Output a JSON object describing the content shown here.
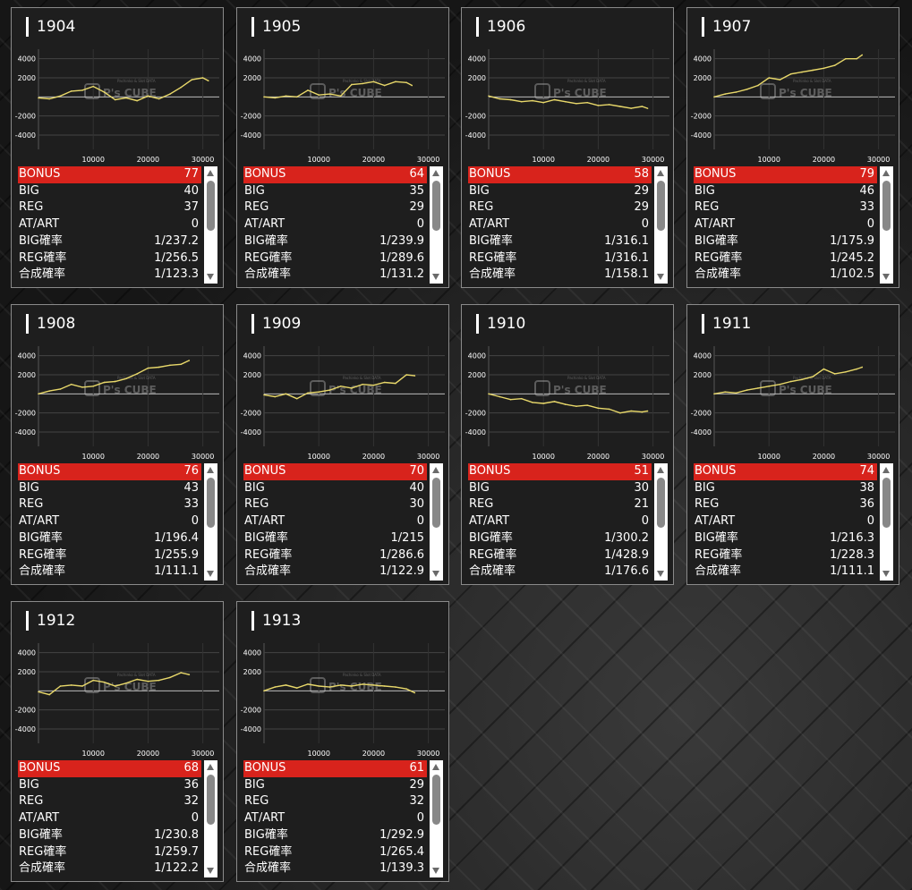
{
  "labels": {
    "bonus": "BONUS",
    "big": "BIG",
    "reg": "REG",
    "at_art": "AT/ART",
    "big_rate": "BIG確率",
    "reg_rate": "REG確率",
    "combined_rate": "合成確率"
  },
  "watermark": {
    "brand": "P's CUBE",
    "tagline": "Pachinko & Slot DATA"
  },
  "colors": {
    "line": "#e8d86a",
    "highlight": "#d8231c",
    "grid": "#444444"
  },
  "machines": [
    {
      "id": "1904",
      "bonus": "77",
      "big": "40",
      "reg": "37",
      "at_art": "0",
      "big_rate": "1/237.2",
      "reg_rate": "1/256.5",
      "combined_rate": "1/123.3"
    },
    {
      "id": "1905",
      "bonus": "64",
      "big": "35",
      "reg": "29",
      "at_art": "0",
      "big_rate": "1/239.9",
      "reg_rate": "1/289.6",
      "combined_rate": "1/131.2"
    },
    {
      "id": "1906",
      "bonus": "58",
      "big": "29",
      "reg": "29",
      "at_art": "0",
      "big_rate": "1/316.1",
      "reg_rate": "1/316.1",
      "combined_rate": "1/158.1"
    },
    {
      "id": "1907",
      "bonus": "79",
      "big": "46",
      "reg": "33",
      "at_art": "0",
      "big_rate": "1/175.9",
      "reg_rate": "1/245.2",
      "combined_rate": "1/102.5"
    },
    {
      "id": "1908",
      "bonus": "76",
      "big": "43",
      "reg": "33",
      "at_art": "0",
      "big_rate": "1/196.4",
      "reg_rate": "1/255.9",
      "combined_rate": "1/111.1"
    },
    {
      "id": "1909",
      "bonus": "70",
      "big": "40",
      "reg": "30",
      "at_art": "0",
      "big_rate": "1/215",
      "reg_rate": "1/286.6",
      "combined_rate": "1/122.9"
    },
    {
      "id": "1910",
      "bonus": "51",
      "big": "30",
      "reg": "21",
      "at_art": "0",
      "big_rate": "1/300.2",
      "reg_rate": "1/428.9",
      "combined_rate": "1/176.6"
    },
    {
      "id": "1911",
      "bonus": "74",
      "big": "38",
      "reg": "36",
      "at_art": "0",
      "big_rate": "1/216.3",
      "reg_rate": "1/228.3",
      "combined_rate": "1/111.1"
    },
    {
      "id": "1912",
      "bonus": "68",
      "big": "36",
      "reg": "32",
      "at_art": "0",
      "big_rate": "1/230.8",
      "reg_rate": "1/259.7",
      "combined_rate": "1/122.2"
    },
    {
      "id": "1913",
      "bonus": "61",
      "big": "29",
      "reg": "32",
      "at_art": "0",
      "big_rate": "1/292.9",
      "reg_rate": "1/265.4",
      "combined_rate": "1/139.3"
    }
  ],
  "chart_data": [
    {
      "type": "line",
      "title": "1904",
      "xlim": [
        0,
        33000
      ],
      "ylim": [
        -5500,
        5000
      ],
      "x_ticks": [
        "10000",
        "20000",
        "30000"
      ],
      "y_ticks": [
        "4000",
        "2000",
        "-2000",
        "-4000"
      ],
      "x": [
        0,
        2000,
        4000,
        6000,
        8000,
        10000,
        12000,
        14000,
        16000,
        18000,
        20000,
        22000,
        24000,
        26000,
        28000,
        30000,
        31000
      ],
      "y": [
        -100,
        -200,
        100,
        600,
        700,
        1100,
        500,
        -300,
        -100,
        -400,
        100,
        -200,
        300,
        1000,
        1800,
        2000,
        1700
      ]
    },
    {
      "type": "line",
      "title": "1905",
      "xlim": [
        0,
        33000
      ],
      "ylim": [
        -5500,
        5000
      ],
      "x_ticks": [
        "10000",
        "20000",
        "30000"
      ],
      "y_ticks": [
        "4000",
        "2000",
        "-2000",
        "-4000"
      ],
      "x": [
        0,
        2000,
        4000,
        6000,
        8000,
        10000,
        12000,
        14000,
        16000,
        18000,
        20000,
        22000,
        24000,
        26000,
        27000
      ],
      "y": [
        0,
        -100,
        100,
        0,
        700,
        200,
        300,
        100,
        1300,
        1400,
        1600,
        1200,
        1600,
        1500,
        1200
      ]
    },
    {
      "type": "line",
      "title": "1906",
      "xlim": [
        0,
        33000
      ],
      "ylim": [
        -5500,
        5000
      ],
      "x_ticks": [
        "10000",
        "20000",
        "30000"
      ],
      "y_ticks": [
        "4000",
        "2000",
        "-2000",
        "-4000"
      ],
      "x": [
        0,
        2000,
        4000,
        6000,
        8000,
        10000,
        12000,
        14000,
        16000,
        18000,
        20000,
        22000,
        24000,
        26000,
        28000,
        29000
      ],
      "y": [
        100,
        -200,
        -300,
        -500,
        -400,
        -600,
        -300,
        -500,
        -700,
        -600,
        -900,
        -800,
        -1000,
        -1200,
        -1000,
        -1200
      ]
    },
    {
      "type": "line",
      "title": "1907",
      "xlim": [
        0,
        33000
      ],
      "ylim": [
        -5500,
        5000
      ],
      "x_ticks": [
        "10000",
        "20000",
        "30000"
      ],
      "y_ticks": [
        "4000",
        "2000",
        "-2000",
        "-4000"
      ],
      "x": [
        0,
        2000,
        4000,
        6000,
        8000,
        10000,
        12000,
        14000,
        16000,
        18000,
        20000,
        22000,
        24000,
        26000,
        27000
      ],
      "y": [
        0,
        300,
        500,
        800,
        1200,
        2000,
        1800,
        2400,
        2600,
        2800,
        3000,
        3300,
        4000,
        4000,
        4400
      ]
    },
    {
      "type": "line",
      "title": "1908",
      "xlim": [
        0,
        33000
      ],
      "ylim": [
        -5500,
        5000
      ],
      "x_ticks": [
        "10000",
        "20000",
        "30000"
      ],
      "y_ticks": [
        "4000",
        "2000",
        "-2000",
        "-4000"
      ],
      "x": [
        0,
        2000,
        4000,
        6000,
        8000,
        10000,
        12000,
        14000,
        16000,
        18000,
        20000,
        22000,
        24000,
        26000,
        27500
      ],
      "y": [
        0,
        300,
        500,
        1000,
        700,
        800,
        1200,
        1300,
        1600,
        2100,
        2700,
        2800,
        3000,
        3100,
        3500
      ]
    },
    {
      "type": "line",
      "title": "1909",
      "xlim": [
        0,
        33000
      ],
      "ylim": [
        -5500,
        5000
      ],
      "x_ticks": [
        "10000",
        "20000",
        "30000"
      ],
      "y_ticks": [
        "4000",
        "2000",
        "-2000",
        "-4000"
      ],
      "x": [
        0,
        2000,
        4000,
        6000,
        8000,
        10000,
        12000,
        14000,
        16000,
        18000,
        20000,
        22000,
        24000,
        26000,
        27500
      ],
      "y": [
        -100,
        -300,
        0,
        -500,
        100,
        200,
        400,
        800,
        600,
        1000,
        900,
        1200,
        1100,
        2000,
        1900
      ]
    },
    {
      "type": "line",
      "title": "1910",
      "xlim": [
        0,
        33000
      ],
      "ylim": [
        -5500,
        5000
      ],
      "x_ticks": [
        "10000",
        "20000",
        "30000"
      ],
      "y_ticks": [
        "4000",
        "2000",
        "-2000",
        "-4000"
      ],
      "x": [
        0,
        2000,
        4000,
        6000,
        8000,
        10000,
        12000,
        14000,
        16000,
        18000,
        20000,
        22000,
        24000,
        26000,
        28000,
        29000
      ],
      "y": [
        0,
        -300,
        -600,
        -500,
        -900,
        -1000,
        -800,
        -1100,
        -1300,
        -1200,
        -1500,
        -1600,
        -2000,
        -1800,
        -1900,
        -1800
      ]
    },
    {
      "type": "line",
      "title": "1911",
      "xlim": [
        0,
        33000
      ],
      "ylim": [
        -5500,
        5000
      ],
      "x_ticks": [
        "10000",
        "20000",
        "30000"
      ],
      "y_ticks": [
        "4000",
        "2000",
        "-2000",
        "-4000"
      ],
      "x": [
        0,
        2000,
        4000,
        6000,
        8000,
        10000,
        12000,
        14000,
        16000,
        18000,
        20000,
        22000,
        24000,
        26000,
        27000
      ],
      "y": [
        0,
        200,
        100,
        400,
        600,
        800,
        1000,
        1300,
        1500,
        1800,
        2600,
        2100,
        2300,
        2600,
        2800
      ]
    },
    {
      "type": "line",
      "title": "1912",
      "xlim": [
        0,
        33000
      ],
      "ylim": [
        -5500,
        5000
      ],
      "x_ticks": [
        "10000",
        "20000",
        "30000"
      ],
      "y_ticks": [
        "4000",
        "2000",
        "-2000",
        "-4000"
      ],
      "x": [
        0,
        2000,
        4000,
        6000,
        8000,
        10000,
        12000,
        14000,
        16000,
        18000,
        20000,
        22000,
        24000,
        26000,
        27500
      ],
      "y": [
        -100,
        -400,
        500,
        600,
        500,
        1100,
        900,
        500,
        800,
        1200,
        1000,
        1100,
        1400,
        1900,
        1700
      ]
    },
    {
      "type": "line",
      "title": "1913",
      "xlim": [
        0,
        33000
      ],
      "ylim": [
        -5500,
        5000
      ],
      "x_ticks": [
        "10000",
        "20000",
        "30000"
      ],
      "y_ticks": [
        "4000",
        "2000",
        "-2000",
        "-4000"
      ],
      "x": [
        0,
        2000,
        4000,
        6000,
        8000,
        10000,
        12000,
        14000,
        16000,
        18000,
        20000,
        22000,
        24000,
        26000,
        27500
      ],
      "y": [
        0,
        400,
        600,
        300,
        700,
        500,
        400,
        600,
        500,
        700,
        600,
        500,
        400,
        200,
        -200
      ]
    }
  ]
}
